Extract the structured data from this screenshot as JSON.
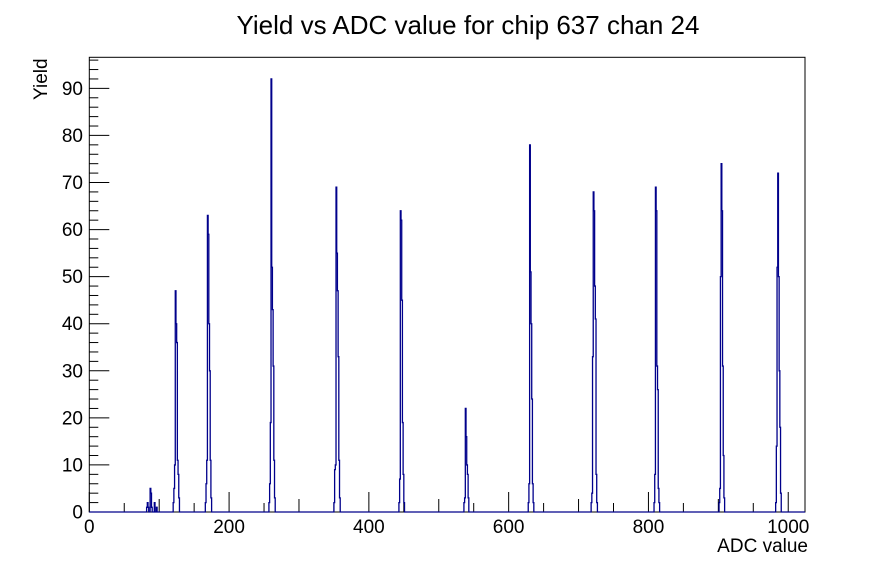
{
  "title": "Yield vs ADC value for chip 637 chan 24",
  "colors": {
    "background": "#ffffff",
    "histogram_line": "#00008b",
    "axis": "#000000",
    "text": "#000000"
  },
  "axes": {
    "x": {
      "title": "ADC value",
      "major_tick_labels": [
        "0",
        "200",
        "400",
        "600",
        "800",
        "1000"
      ],
      "major_step": 200,
      "minor_step": 50
    },
    "y": {
      "title": "Yield",
      "major_tick_labels": [
        "0",
        "10",
        "20",
        "30",
        "40",
        "50",
        "60",
        "70",
        "80",
        "90"
      ],
      "major_step": 10,
      "minor_step": 2
    }
  },
  "chart_data": {
    "type": "bar",
    "subtype": "root-step-histogram",
    "title": "Yield vs ADC value for chip 637 chan 24",
    "xlabel": "ADC value",
    "ylabel": "Yield",
    "xlim": [
      0,
      1024
    ],
    "ylim": [
      0,
      96.6
    ],
    "grid": false,
    "legend": false,
    "bin_width": 1,
    "bins": [
      [
        82,
        1
      ],
      [
        83,
        2
      ],
      [
        84,
        1
      ],
      [
        87,
        5
      ],
      [
        88,
        4
      ],
      [
        89,
        1
      ],
      [
        93,
        2
      ],
      [
        96,
        1
      ],
      [
        120,
        2
      ],
      [
        121,
        5
      ],
      [
        122,
        10
      ],
      [
        123,
        47
      ],
      [
        124,
        40
      ],
      [
        125,
        36
      ],
      [
        126,
        11
      ],
      [
        127,
        8
      ],
      [
        128,
        3
      ],
      [
        166,
        2
      ],
      [
        167,
        6
      ],
      [
        168,
        11
      ],
      [
        169,
        63
      ],
      [
        170,
        59
      ],
      [
        171,
        40
      ],
      [
        172,
        30
      ],
      [
        173,
        11
      ],
      [
        174,
        3
      ],
      [
        257,
        2
      ],
      [
        258,
        6
      ],
      [
        259,
        19
      ],
      [
        260,
        92
      ],
      [
        261,
        52
      ],
      [
        262,
        43
      ],
      [
        263,
        31
      ],
      [
        264,
        11
      ],
      [
        265,
        3
      ],
      [
        350,
        2
      ],
      [
        351,
        9
      ],
      [
        352,
        10
      ],
      [
        353,
        69
      ],
      [
        354,
        55
      ],
      [
        355,
        47
      ],
      [
        356,
        33
      ],
      [
        357,
        11
      ],
      [
        358,
        3
      ],
      [
        443,
        2
      ],
      [
        444,
        7
      ],
      [
        445,
        64
      ],
      [
        446,
        62
      ],
      [
        447,
        45
      ],
      [
        448,
        19
      ],
      [
        449,
        8
      ],
      [
        450,
        2
      ],
      [
        536,
        2
      ],
      [
        537,
        3
      ],
      [
        538,
        22
      ],
      [
        539,
        16
      ],
      [
        540,
        10
      ],
      [
        541,
        8
      ],
      [
        542,
        3
      ],
      [
        628,
        2
      ],
      [
        629,
        6
      ],
      [
        630,
        78
      ],
      [
        631,
        51
      ],
      [
        632,
        40
      ],
      [
        633,
        24
      ],
      [
        634,
        6
      ],
      [
        635,
        2
      ],
      [
        718,
        2
      ],
      [
        719,
        4
      ],
      [
        720,
        33
      ],
      [
        721,
        68
      ],
      [
        722,
        64
      ],
      [
        723,
        48
      ],
      [
        724,
        41
      ],
      [
        725,
        8
      ],
      [
        726,
        2
      ],
      [
        808,
        2
      ],
      [
        809,
        8
      ],
      [
        810,
        69
      ],
      [
        811,
        64
      ],
      [
        812,
        31
      ],
      [
        813,
        26
      ],
      [
        814,
        5
      ],
      [
        815,
        2
      ],
      [
        901,
        2
      ],
      [
        902,
        5
      ],
      [
        903,
        50
      ],
      [
        904,
        74
      ],
      [
        905,
        64
      ],
      [
        906,
        31
      ],
      [
        907,
        12
      ],
      [
        908,
        3
      ],
      [
        982,
        2
      ],
      [
        983,
        14
      ],
      [
        984,
        52
      ],
      [
        985,
        72
      ],
      [
        986,
        50
      ],
      [
        987,
        30
      ],
      [
        988,
        18
      ],
      [
        989,
        4
      ]
    ]
  }
}
